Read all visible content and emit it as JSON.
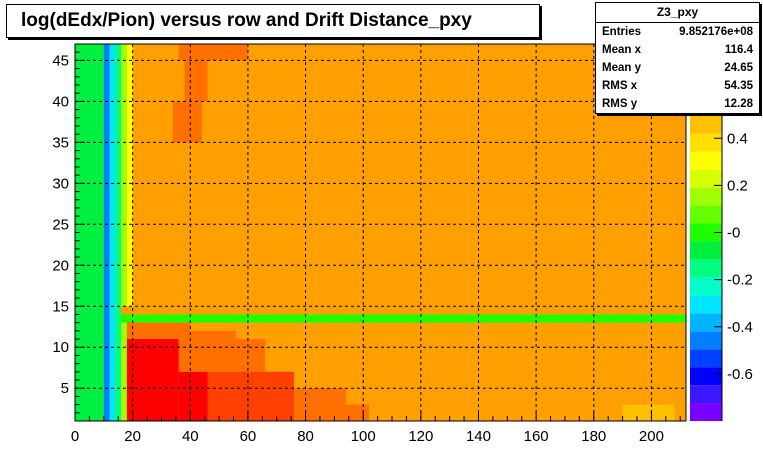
{
  "window": {
    "title": "log(dEdx/Pion) versus row and Drift Distance_pxy"
  },
  "stats": {
    "name": "Z3_pxy",
    "rows": [
      {
        "label": "Entries",
        "value": "9.852176e+08"
      },
      {
        "label": "Mean x",
        "value": "116.4"
      },
      {
        "label": "Mean y",
        "value": "24.65"
      },
      {
        "label": "RMS x",
        "value": "54.35"
      },
      {
        "label": "RMS y",
        "value": "12.28"
      }
    ]
  },
  "chart_data": {
    "type": "heatmap",
    "title": "log(dEdx/Pion) versus row and Drift Distance_pxy",
    "xlabel": "",
    "ylabel": "",
    "xlim": [
      0,
      212
    ],
    "ylim": [
      1,
      47
    ],
    "x_ticks": [
      0,
      20,
      40,
      60,
      80,
      100,
      120,
      140,
      160,
      180,
      200
    ],
    "y_ticks": [
      5,
      10,
      15,
      20,
      25,
      30,
      35,
      40,
      45
    ],
    "zlim": [
      -0.8,
      0.8
    ],
    "z_ticks": [
      0.4,
      0.2,
      0,
      -0.2,
      -0.4,
      -0.6
    ],
    "z_tick_labels": [
      "0.4",
      "0.2",
      "-0",
      "-0.2",
      "-0.4",
      "-0.6"
    ],
    "grid": true,
    "background_value": 0.5,
    "palette": [
      "#7a00ff",
      "#3a18ff",
      "#0000ff",
      "#0040ff",
      "#0080ff",
      "#00b4ff",
      "#00e6ff",
      "#00ffc8",
      "#00ff80",
      "#00f040",
      "#20ff00",
      "#66ff00",
      "#a0ff00",
      "#d8ff00",
      "#ffff00",
      "#ffe000",
      "#ffc000",
      "#ffa000",
      "#ff7000",
      "#ff4000",
      "#ff0000"
    ],
    "regions": [
      {
        "x": [
          0,
          10
        ],
        "y": [
          1,
          47
        ],
        "z": -0.05
      },
      {
        "x": [
          10,
          12
        ],
        "y": [
          1,
          47
        ],
        "z": -0.45
      },
      {
        "x": [
          12,
          14
        ],
        "y": [
          1,
          47
        ],
        "z": -0.28
      },
      {
        "x": [
          14,
          16
        ],
        "y": [
          1,
          47
        ],
        "z": -0.18
      },
      {
        "x": [
          16,
          18
        ],
        "y": [
          15,
          47
        ],
        "z": 0.15
      },
      {
        "x": [
          18,
          20
        ],
        "y": [
          15,
          47
        ],
        "z": 0.32
      },
      {
        "x": [
          16,
          212
        ],
        "y": [
          13,
          14
        ],
        "z": -0.02
      },
      {
        "x": [
          36,
          60
        ],
        "y": [
          45,
          47
        ],
        "z": 0.62
      },
      {
        "x": [
          38,
          46
        ],
        "y": [
          40,
          45
        ],
        "z": 0.6
      },
      {
        "x": [
          34,
          44
        ],
        "y": [
          35,
          40
        ],
        "z": 0.62
      },
      {
        "x": [
          16,
          18
        ],
        "y": [
          1,
          13
        ],
        "z": 0.15
      },
      {
        "x": [
          18,
          40
        ],
        "y": [
          11,
          13
        ],
        "z": 0.62
      },
      {
        "x": [
          40,
          56
        ],
        "y": [
          11,
          12
        ],
        "z": 0.62
      },
      {
        "x": [
          18,
          36
        ],
        "y": [
          9,
          11
        ],
        "z": 0.74
      },
      {
        "x": [
          36,
          66
        ],
        "y": [
          7,
          11
        ],
        "z": 0.62
      },
      {
        "x": [
          18,
          36
        ],
        "y": [
          1,
          9
        ],
        "z": 0.8
      },
      {
        "x": [
          36,
          46
        ],
        "y": [
          1,
          7
        ],
        "z": 0.74
      },
      {
        "x": [
          46,
          76
        ],
        "y": [
          1,
          7
        ],
        "z": 0.68
      },
      {
        "x": [
          76,
          94
        ],
        "y": [
          1,
          5
        ],
        "z": 0.62
      },
      {
        "x": [
          94,
          102
        ],
        "y": [
          1,
          3
        ],
        "z": 0.6
      },
      {
        "x": [
          190,
          208
        ],
        "y": [
          1,
          3
        ],
        "z": 0.42
      }
    ]
  }
}
